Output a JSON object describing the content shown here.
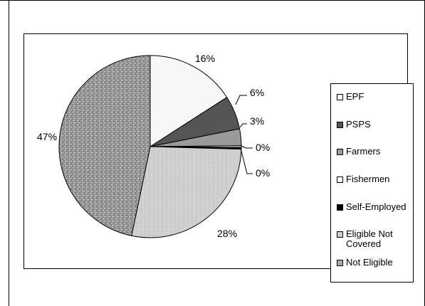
{
  "chart_data": {
    "type": "pie",
    "categories": [
      "EPF",
      "PSPS",
      "Farmers",
      "Fishermen",
      "Self-Employed",
      "Eligible Not Covered",
      "Not Eligible"
    ],
    "values": [
      16,
      6,
      3,
      0.3,
      0.3,
      28,
      47
    ],
    "data_labels": [
      "16%",
      "6%",
      "3%",
      "0%",
      "0%",
      "28%",
      "47%"
    ],
    "colors": [
      "#f7f7f7",
      "#555555",
      "#9a9a9a",
      "#f0f0f0",
      "#000000",
      "#cccccc",
      "#8c8c8c"
    ],
    "legend_placement": "right",
    "title": "",
    "grid": false
  }
}
